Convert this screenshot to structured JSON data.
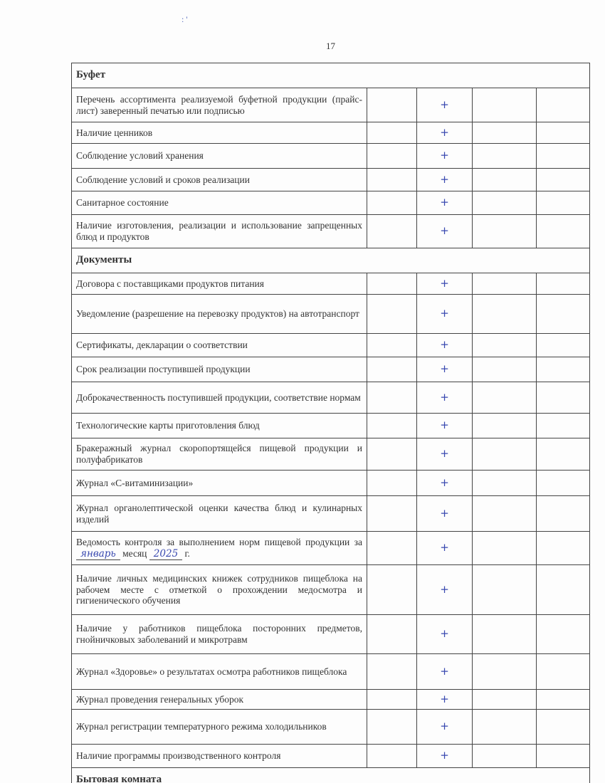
{
  "page_number": "17",
  "top_marks": ": '",
  "check_mark": "+",
  "sections": [
    {
      "title": "Буфет",
      "rows": [
        {
          "text": "Перечень ассортимента реализуемой буфетной продукции (прайс-лист) заверенный печатью или подписью",
          "h": 48
        },
        {
          "text": "Наличие ценников",
          "h": 30
        },
        {
          "text": "Соблюдение условий хранения",
          "h": 35
        },
        {
          "text": "Соблюдение условий и сроков реализации",
          "h": 32
        },
        {
          "text": "Санитарное состояние",
          "h": 33
        },
        {
          "text": "Наличие изготовления, реализации и использование запрещенных блюд и продуктов",
          "h": 47
        }
      ]
    },
    {
      "title": "Документы",
      "rows": [
        {
          "text": "Договора с поставщиками продуктов питания",
          "h": 30
        },
        {
          "text": "Уведомление (разрешение на перевозку продуктов) на автотранспорт",
          "h": 55
        },
        {
          "text": "Сертификаты, декларации о соответствии",
          "h": 33
        },
        {
          "text": "Срок реализации поступившей продукции",
          "h": 35
        },
        {
          "text": "Доброкачественность поступившей продукции, соответствие нормам",
          "h": 44
        },
        {
          "text": "Технологические карты приготовления блюд",
          "h": 35
        },
        {
          "text": "Бракеражный журнал скоропортящейся пищевой продукции и полуфабрикатов",
          "h": 45
        },
        {
          "text": "Журнал «С-витаминизации»",
          "h": 36
        },
        {
          "text": "Журнал органолептической оценки качества блюд и кулинарных изделий",
          "h": 50
        },
        {
          "text": "Ведомость контроля за выполнением норм пищевой продукции за",
          "suffix_month": "месяц",
          "suffix_year": "г.",
          "month": "январь",
          "year": "2025",
          "h": 47
        },
        {
          "text": "Наличие личных медицинских книжек сотрудников пищеблока на рабочем месте с отметкой о прохождении медосмотра и гигиенического обучения",
          "h": 70
        },
        {
          "text": "Наличие у работников пищеблока посторонних предметов, гнойничковых заболеваний и микротравм",
          "h": 55
        },
        {
          "text": "Журнал «Здоровье» о результатах осмотра работников пищеблока",
          "h": 50
        },
        {
          "text": "Журнал проведения генеральных уборок",
          "h": 28
        },
        {
          "text": "Журнал регистрации температурного режима холодильников",
          "h": 49
        },
        {
          "text": "Наличие программы производственного контроля",
          "h": 33
        }
      ]
    },
    {
      "title": "Бытовая комната",
      "rows": []
    }
  ]
}
